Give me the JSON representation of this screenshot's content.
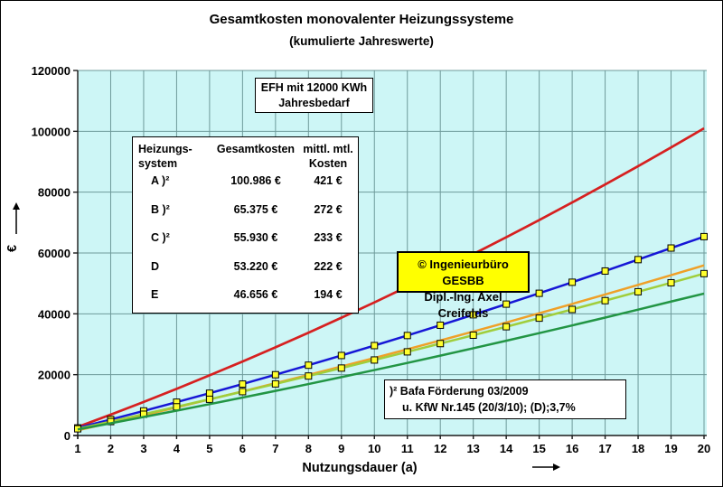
{
  "title": "Gesamtkosten monovalenter Heizungssysteme",
  "subtitle": "(kumulierte Jahreswerte)",
  "annotations": {
    "efh_box": {
      "line1": "EFH mit 12000 KWh",
      "line2": "Jahresbedarf"
    },
    "copyright_box": {
      "line1": "© Ingenieurbüro GESBB",
      "line2": "Dipl.-Ing. Axel Creifelds",
      "bg_color": "#FFFF00"
    },
    "footnote_box": {
      "line1": ")² Bafa Förderung 03/2009",
      "line2": "u. KfW Nr.145 (20/3/10); (D);3,7%"
    }
  },
  "cost_table": {
    "headers": {
      "col1_line1": "Heizungs-",
      "col1_line2": "system",
      "col2": "Gesamtkosten",
      "col3_line1": "mittl. mtl.",
      "col3_line2": "Kosten"
    },
    "rows": [
      {
        "system": "A )²",
        "total": "100.986 €",
        "monthly": "421 €"
      },
      {
        "system": "B )²",
        "total": "65.375 €",
        "monthly": "272 €"
      },
      {
        "system": "C )²",
        "total": "55.930 €",
        "monthly": "233 €"
      },
      {
        "system": "D",
        "total": "53.220 €",
        "monthly": "222 €"
      },
      {
        "system": "E",
        "total": "46.656 €",
        "monthly": "194 €"
      }
    ]
  },
  "chart_data": {
    "type": "line",
    "x": [
      1,
      2,
      3,
      4,
      5,
      6,
      7,
      8,
      9,
      10,
      11,
      12,
      13,
      14,
      15,
      16,
      17,
      18,
      19,
      20
    ],
    "xlabel": "Nutzungsdauer (a)",
    "ylabel": "€",
    "ylim": [
      0,
      120000
    ],
    "ytick_step": 20000,
    "grid": true,
    "legend_position": "none",
    "plot_bg": "#CDF6F6",
    "grid_color": "#6E9A9A",
    "axis_color": "#1a1a1a",
    "marker_style": {
      "shape": "square",
      "size": 7,
      "fill": "#FFFF2E",
      "stroke": "#000000"
    },
    "series": [
      {
        "name": "A )²",
        "color": "#D62020",
        "width": 2.7,
        "marker": false,
        "values": [
          2800,
          6860,
          11040,
          15350,
          19780,
          24330,
          29000,
          33800,
          38720,
          43760,
          48930,
          54220,
          59630,
          65170,
          70820,
          76610,
          82510,
          88540,
          94690,
          100986
        ]
      },
      {
        "name": "B )²",
        "color": "#1616D6",
        "width": 2.5,
        "marker": true,
        "values": [
          2500,
          5260,
          8080,
          10960,
          13910,
          16910,
          19980,
          23110,
          26300,
          29560,
          32870,
          36250,
          39690,
          43190,
          46750,
          50380,
          54070,
          57820,
          61630,
          65375
        ]
      },
      {
        "name": "C )²",
        "color": "#EFA028",
        "width": 2.5,
        "marker": false,
        "values": [
          1700,
          4180,
          6690,
          9250,
          11860,
          14500,
          17190,
          19910,
          22680,
          25500,
          28350,
          31250,
          34180,
          37160,
          40190,
          43250,
          46360,
          49500,
          52690,
          55930
        ]
      },
      {
        "name": "D",
        "color": "#A0CE3C",
        "width": 2.5,
        "marker": true,
        "values": [
          2200,
          4580,
          6990,
          9430,
          11910,
          14420,
          16970,
          19550,
          22170,
          24820,
          27500,
          30220,
          32970,
          35760,
          38580,
          41440,
          44330,
          47250,
          50210,
          53220
        ]
      },
      {
        "name": "E",
        "color": "#229544",
        "width": 2.5,
        "marker": false,
        "values": [
          2000,
          4020,
          6080,
          8170,
          10300,
          12470,
          14670,
          16910,
          19190,
          21510,
          23860,
          26250,
          28680,
          31150,
          33650,
          36190,
          38760,
          41380,
          44030,
          46656
        ]
      }
    ]
  }
}
